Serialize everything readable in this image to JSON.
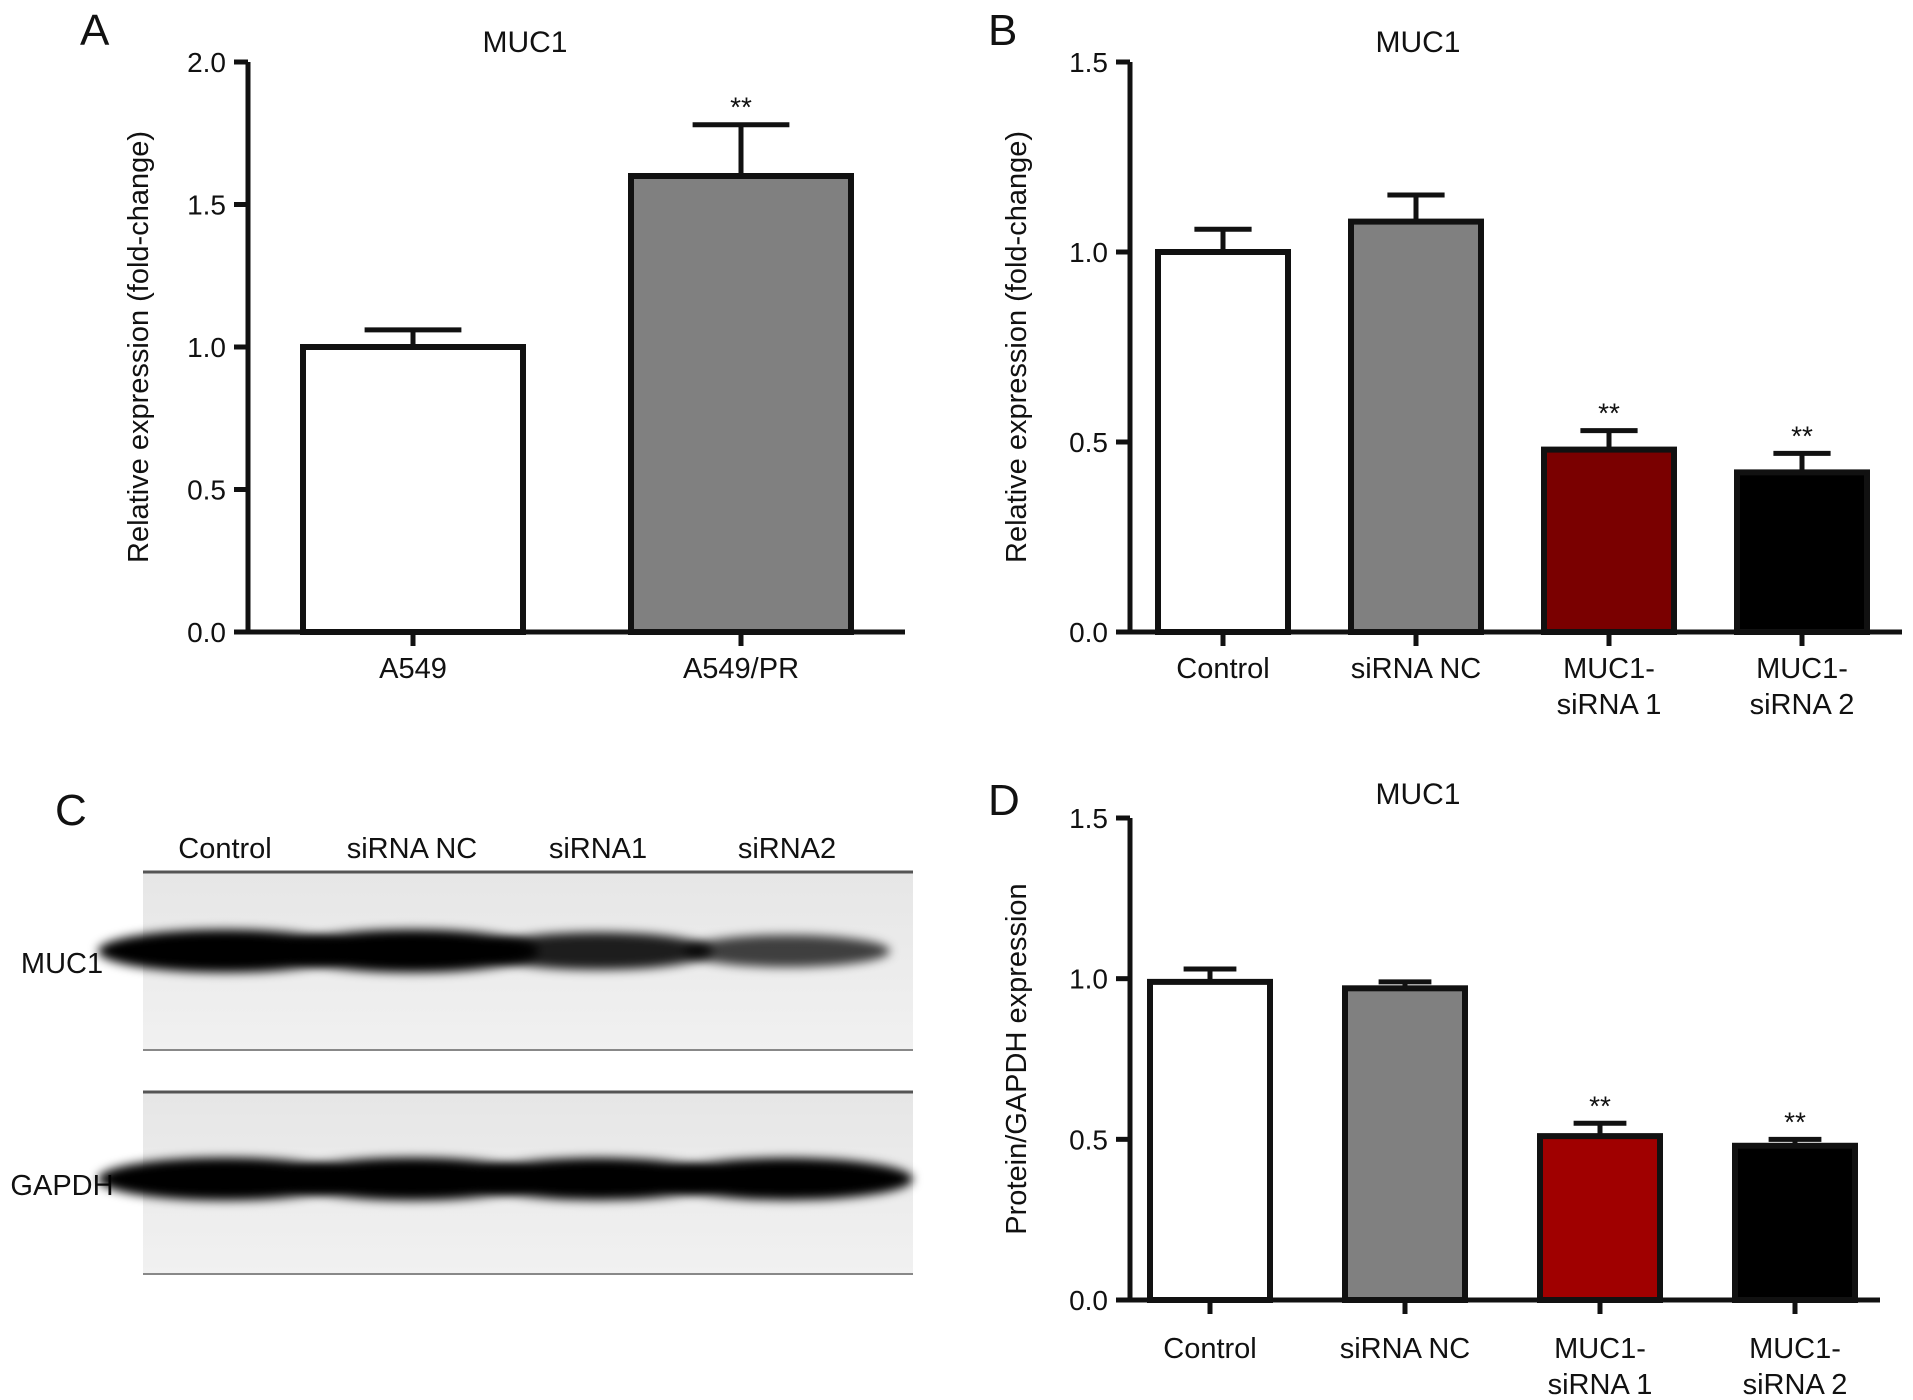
{
  "panels": {
    "a": {
      "letter": "A"
    },
    "b": {
      "letter": "B"
    },
    "c": {
      "letter": "C"
    },
    "d": {
      "letter": "D"
    }
  },
  "chart_data": [
    {
      "panel": "A",
      "type": "bar",
      "title": "MUC1",
      "ylabel": "Relative expression (fold-change)",
      "ylim": [
        0,
        2.0
      ],
      "yticks": [
        "0.0",
        "0.5",
        "1.0",
        "1.5",
        "2.0"
      ],
      "categories": [
        [
          "A549"
        ],
        [
          "A549/PR"
        ]
      ],
      "values": [
        1.0,
        1.6
      ],
      "errors": [
        0.06,
        0.18
      ],
      "significance": [
        "",
        "**"
      ],
      "colors": [
        "#ffffff",
        "#808080"
      ]
    },
    {
      "panel": "B",
      "type": "bar",
      "title": "MUC1",
      "ylabel": "Relative expression (fold-change)",
      "ylim": [
        0,
        1.5
      ],
      "yticks": [
        "0.0",
        "0.5",
        "1.0",
        "1.5"
      ],
      "categories": [
        [
          "Control"
        ],
        [
          "siRNA NC"
        ],
        [
          "MUC1-",
          "siRNA 1"
        ],
        [
          "MUC1-",
          "siRNA 2"
        ]
      ],
      "values": [
        1.0,
        1.08,
        0.48,
        0.42
      ],
      "errors": [
        0.06,
        0.07,
        0.05,
        0.05
      ],
      "significance": [
        "",
        "",
        "**",
        "**"
      ],
      "colors": [
        "#ffffff",
        "#808080",
        "#7a0000",
        "#000000"
      ]
    },
    {
      "panel": "D",
      "type": "bar",
      "title": "MUC1",
      "ylabel": "Protein/GAPDH expression",
      "ylim": [
        0,
        1.5
      ],
      "yticks": [
        "0.0",
        "0.5",
        "1.0",
        "1.5"
      ],
      "categories": [
        [
          "Control"
        ],
        [
          "siRNA NC"
        ],
        [
          "MUC1-",
          "siRNA 1"
        ],
        [
          "MUC1-",
          "siRNA 2"
        ]
      ],
      "values": [
        0.99,
        0.97,
        0.51,
        0.48
      ],
      "errors": [
        0.04,
        0.02,
        0.04,
        0.02
      ],
      "significance": [
        "",
        "",
        "**",
        "**"
      ],
      "colors": [
        "#ffffff",
        "#808080",
        "#a00000",
        "#000000"
      ]
    }
  ],
  "western_blot": {
    "lanes": [
      "Control",
      "siRNA NC",
      "siRNA1",
      "siRNA2"
    ],
    "rows": [
      {
        "label": "MUC1",
        "intensities": [
          0.95,
          0.95,
          0.75,
          0.55
        ]
      },
      {
        "label": "GAPDH",
        "intensities": [
          0.95,
          0.95,
          0.93,
          0.93
        ]
      }
    ]
  }
}
